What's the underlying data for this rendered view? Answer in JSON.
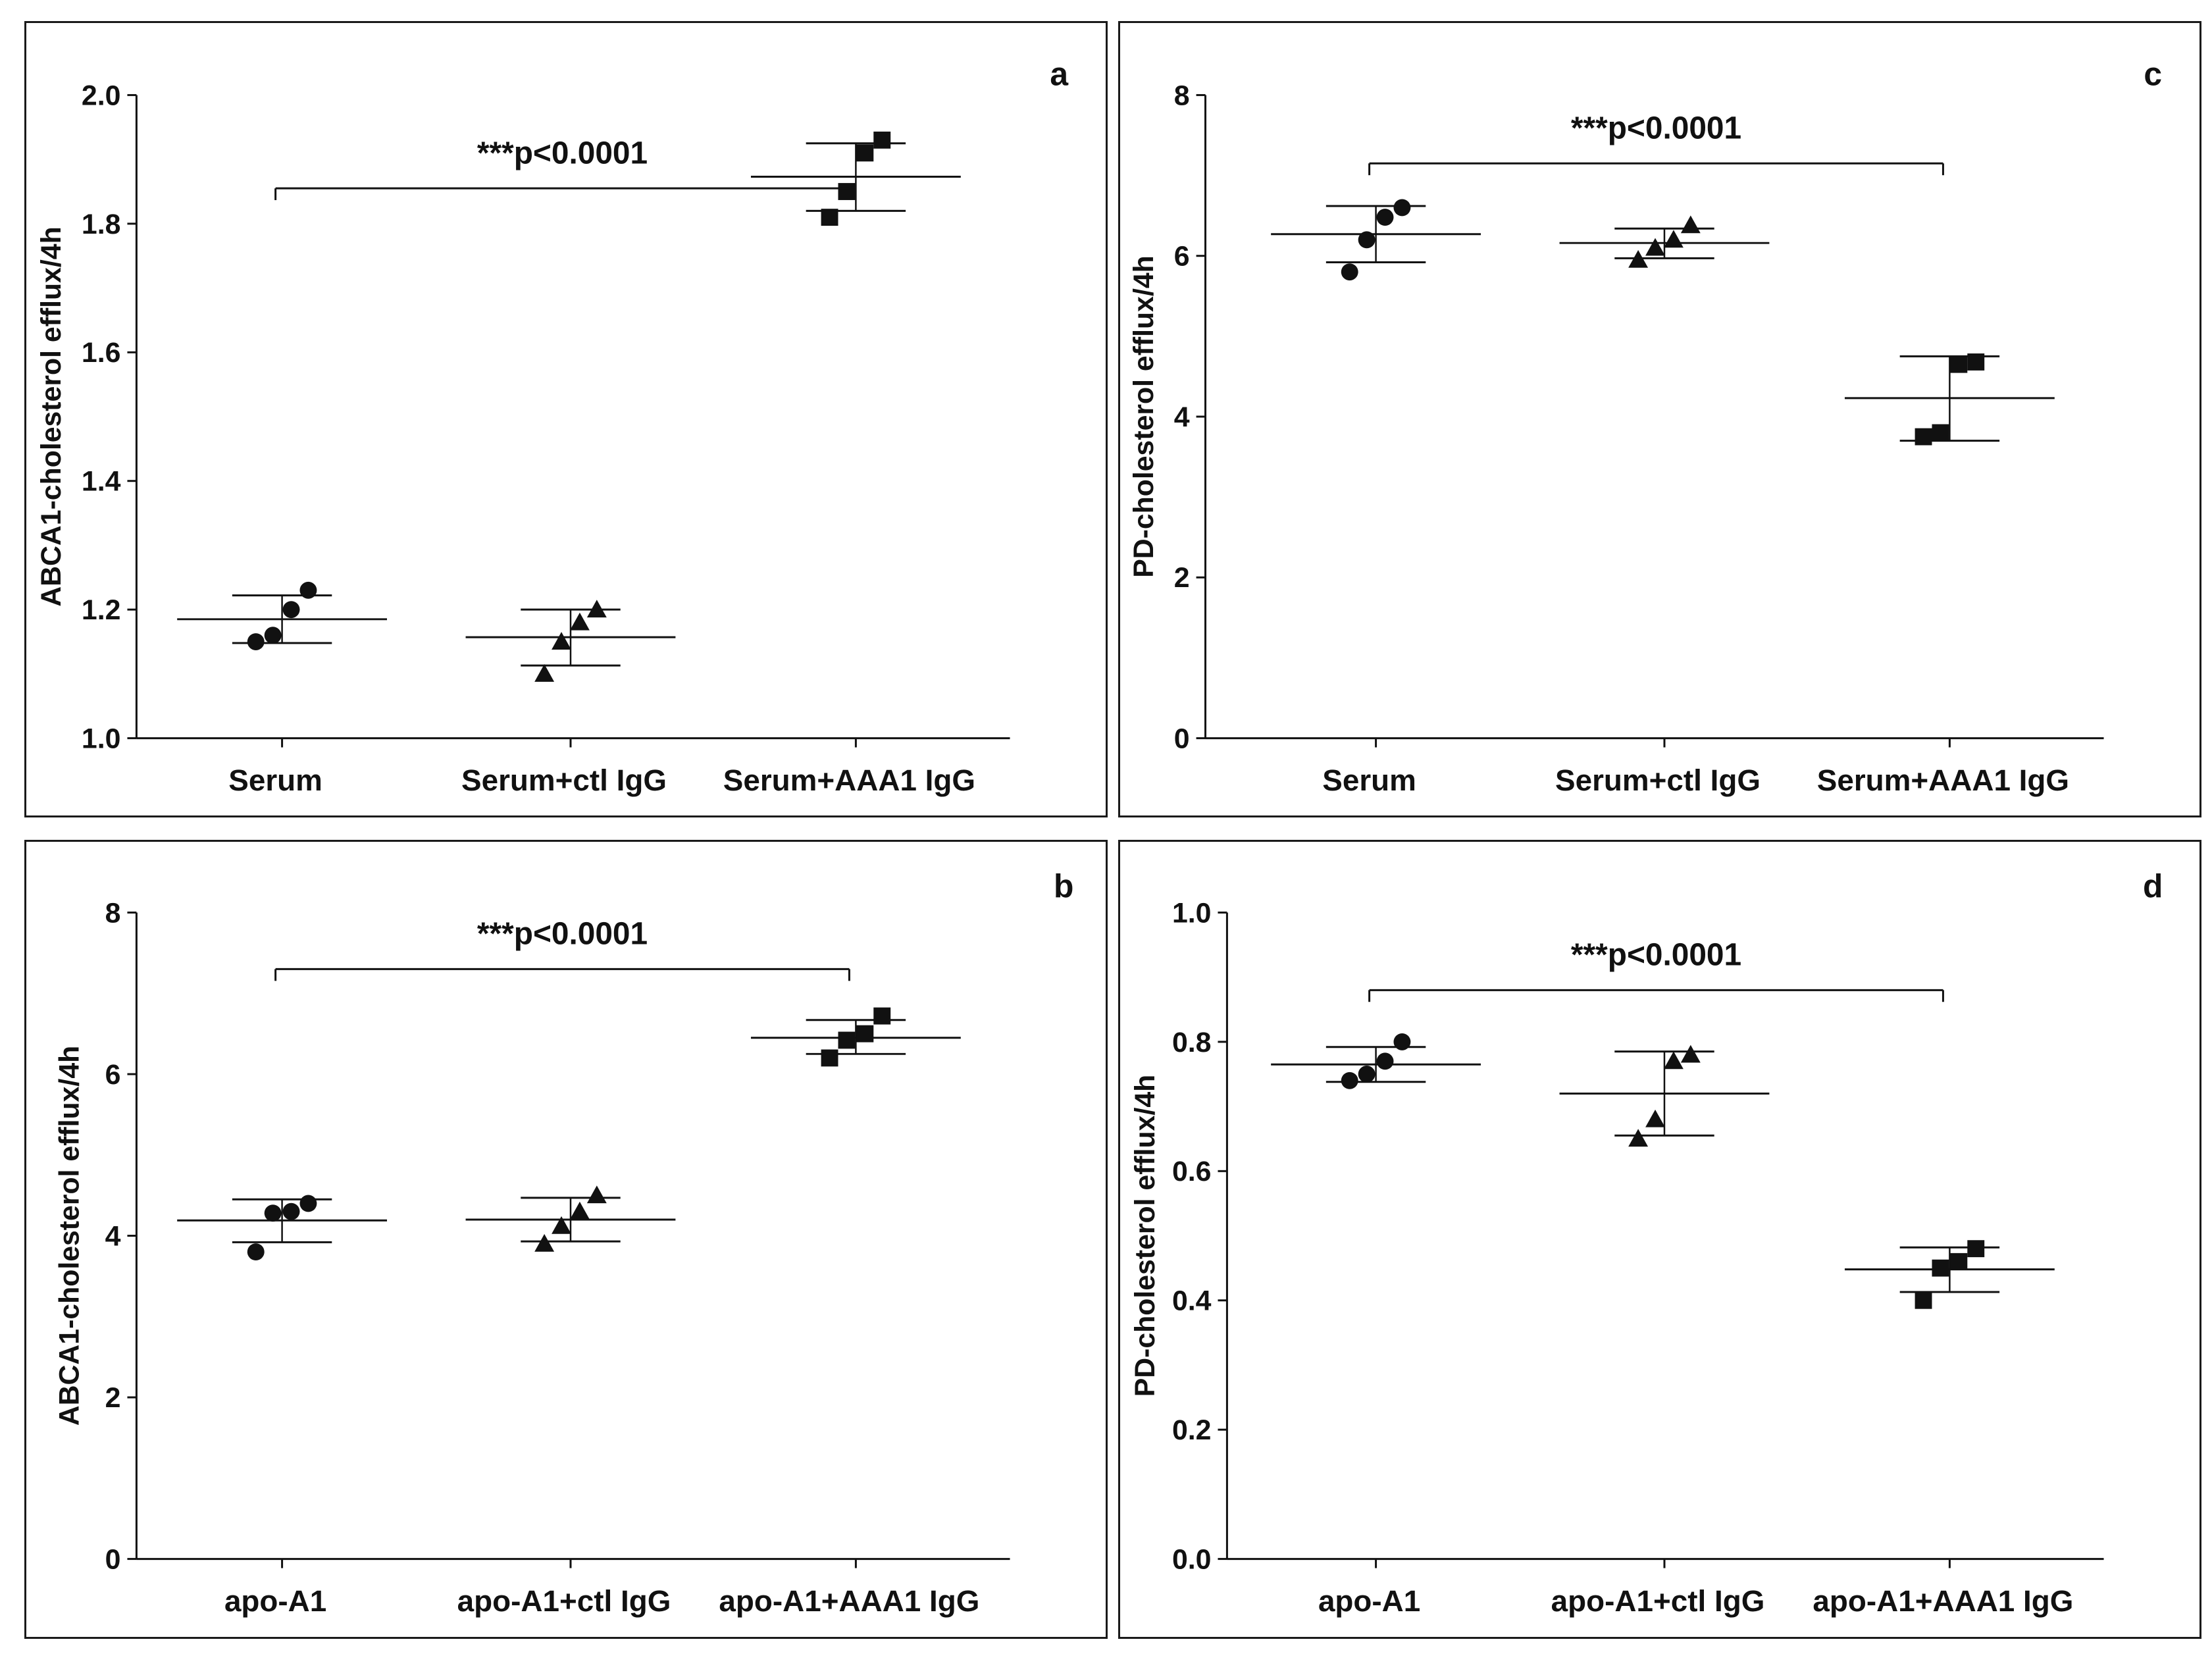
{
  "chart_data": [
    {
      "id": "a",
      "type": "scatter",
      "panel_label": "a",
      "ylabel": "ABCA1-cholesterol efflux/4h",
      "ylim": [
        1.0,
        2.0
      ],
      "yticks": [
        "1.0",
        "1.2",
        "1.4",
        "1.6",
        "1.8",
        "2.0"
      ],
      "categories": [
        "Serum",
        "Serum+ctl IgG",
        "Serum+AAA1 IgG"
      ],
      "marker_shapes": [
        "circle",
        "triangle",
        "square"
      ],
      "groups": [
        {
          "points": [
            1.15,
            1.16,
            1.2,
            1.23
          ],
          "mean": 1.185,
          "sd_low": 1.148,
          "sd_high": 1.222
        },
        {
          "points": [
            1.1,
            1.15,
            1.18,
            1.2
          ],
          "mean": 1.157,
          "sd_low": 1.113,
          "sd_high": 1.2
        },
        {
          "points": [
            1.81,
            1.85,
            1.91,
            1.93
          ],
          "mean": 1.873,
          "sd_low": 1.82,
          "sd_high": 1.925
        }
      ],
      "annotation": {
        "text": "***p<0.0001",
        "from_group": 0,
        "to_group": 2,
        "y": 1.855,
        "style": "single-tick"
      }
    },
    {
      "id": "c",
      "type": "scatter",
      "panel_label": "c",
      "ylabel": "PD-cholesterol efflux/4h",
      "ylim": [
        0,
        8
      ],
      "yticks": [
        "0",
        "2",
        "4",
        "6",
        "8"
      ],
      "categories": [
        "Serum",
        "Serum+ctl IgG",
        "Serum+AAA1 IgG"
      ],
      "marker_shapes": [
        "circle",
        "triangle",
        "square"
      ],
      "groups": [
        {
          "points": [
            5.8,
            6.2,
            6.48,
            6.6
          ],
          "mean": 6.27,
          "sd_low": 5.92,
          "sd_high": 6.62
        },
        {
          "points": [
            5.95,
            6.1,
            6.2,
            6.38
          ],
          "mean": 6.16,
          "sd_low": 5.97,
          "sd_high": 6.34
        },
        {
          "points": [
            3.75,
            3.8,
            4.65,
            4.68
          ],
          "mean": 4.23,
          "sd_low": 3.7,
          "sd_high": 4.75
        }
      ],
      "annotation": {
        "text": "***p<0.0001",
        "from_group": 0,
        "to_group": 2,
        "y": 7.15,
        "style": "bracket"
      }
    },
    {
      "id": "b",
      "type": "scatter",
      "panel_label": "b",
      "ylabel": "ABCA1-cholesterol efflux/4h",
      "ylim": [
        0,
        8
      ],
      "yticks": [
        "0",
        "2",
        "4",
        "6",
        "8"
      ],
      "categories": [
        "apo-A1",
        "apo-A1+ctl IgG",
        "apo-A1+AAA1 IgG"
      ],
      "marker_shapes": [
        "circle",
        "triangle",
        "square"
      ],
      "groups": [
        {
          "points": [
            3.8,
            4.28,
            4.3,
            4.4
          ],
          "mean": 4.19,
          "sd_low": 3.92,
          "sd_high": 4.45
        },
        {
          "points": [
            3.9,
            4.12,
            4.3,
            4.5
          ],
          "mean": 4.2,
          "sd_low": 3.93,
          "sd_high": 4.47
        },
        {
          "points": [
            6.2,
            6.42,
            6.5,
            6.72
          ],
          "mean": 6.45,
          "sd_low": 6.25,
          "sd_high": 6.67
        }
      ],
      "annotation": {
        "text": "***p<0.0001",
        "from_group": 0,
        "to_group": 2,
        "y": 7.3,
        "style": "bracket"
      }
    },
    {
      "id": "d",
      "type": "scatter",
      "panel_label": "d",
      "ylabel": "PD-cholesterol efflux/4h",
      "ylim": [
        0.0,
        1.0
      ],
      "yticks": [
        "0.0",
        "0.2",
        "0.4",
        "0.6",
        "0.8",
        "1.0"
      ],
      "categories": [
        "apo-A1",
        "apo-A1+ctl IgG",
        "apo-A1+AAA1 IgG"
      ],
      "marker_shapes": [
        "circle",
        "triangle",
        "square"
      ],
      "groups": [
        {
          "points": [
            0.74,
            0.75,
            0.77,
            0.8
          ],
          "mean": 0.765,
          "sd_low": 0.738,
          "sd_high": 0.792
        },
        {
          "points": [
            0.65,
            0.68,
            0.77,
            0.78
          ],
          "mean": 0.72,
          "sd_low": 0.655,
          "sd_high": 0.785
        },
        {
          "points": [
            0.4,
            0.45,
            0.46,
            0.48
          ],
          "mean": 0.448,
          "sd_low": 0.413,
          "sd_high": 0.482
        }
      ],
      "annotation": {
        "text": "***p<0.0001",
        "from_group": 0,
        "to_group": 2,
        "y": 0.88,
        "style": "bracket"
      }
    }
  ]
}
